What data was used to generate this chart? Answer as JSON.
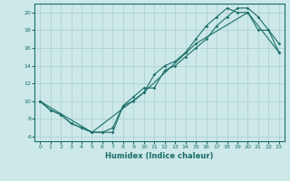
{
  "xlabel": "Humidex (Indice chaleur)",
  "background_color": "#cce8e8",
  "line_color": "#1a6e6a",
  "grid_color": "#aacece",
  "xlim": [
    -0.5,
    23.5
  ],
  "ylim": [
    5.5,
    21.0
  ],
  "xticks": [
    0,
    1,
    2,
    3,
    4,
    5,
    6,
    7,
    8,
    9,
    10,
    11,
    12,
    13,
    14,
    15,
    16,
    17,
    18,
    19,
    20,
    21,
    22,
    23
  ],
  "yticks": [
    6,
    8,
    10,
    12,
    14,
    16,
    18,
    20
  ],
  "line1_x": [
    0,
    1,
    2,
    3,
    4,
    5,
    6,
    7,
    8,
    9,
    10,
    11,
    12,
    13,
    14,
    15,
    16,
    17,
    18,
    19,
    20,
    21,
    22,
    23
  ],
  "line1_y": [
    10,
    9,
    8.5,
    7.5,
    7,
    6.5,
    6.5,
    6.5,
    9.5,
    10,
    11,
    13,
    14,
    14.5,
    15.5,
    17,
    18.5,
    19.5,
    20.5,
    20,
    20,
    18,
    18,
    15.5
  ],
  "line2_x": [
    0,
    1,
    2,
    3,
    4,
    5,
    6,
    7,
    8,
    9,
    10,
    11,
    12,
    13,
    14,
    15,
    16,
    17,
    18,
    19,
    20,
    21,
    22,
    23
  ],
  "line2_y": [
    10,
    9,
    8.5,
    7.5,
    7,
    6.5,
    6.5,
    7,
    9.5,
    10.5,
    11.5,
    11.5,
    13.5,
    14,
    15,
    16,
    17,
    18.5,
    19.5,
    20.5,
    20.5,
    19.5,
    18,
    16.5
  ],
  "line3_x": [
    0,
    5,
    10,
    15,
    20,
    23
  ],
  "line3_y": [
    10,
    6.5,
    11,
    16.5,
    20,
    15.5
  ]
}
